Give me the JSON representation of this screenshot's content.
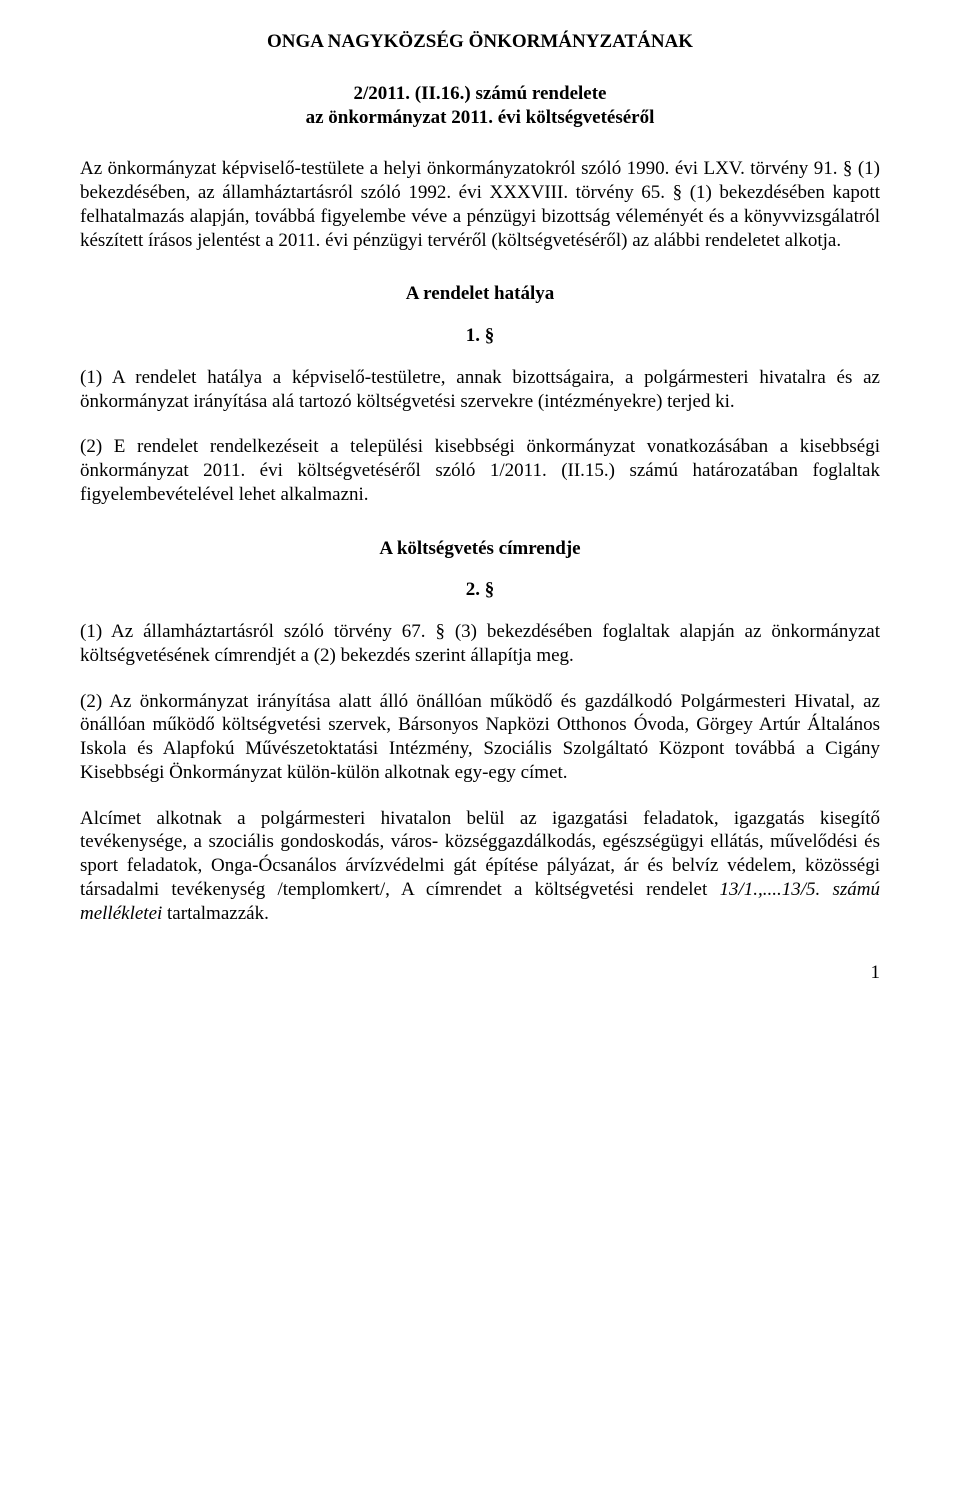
{
  "title": "ONGA NAGYKÖZSÉG ÖNKORMÁNYZATÁNAK",
  "subtitle_line1": "2/2011. (II.16.) számú rendelete",
  "subtitle_line2": "az önkormányzat 2011. évi költségvetéséről",
  "preamble": "Az önkormányzat képviselő-testülete a helyi önkormányzatokról szóló 1990. évi LXV. törvény 91. § (1) bekezdésében, az államháztartásról szóló 1992. évi XXXVIII. törvény 65. § (1) bekezdésében kapott felhatalmazás alapján, továbbá figyelembe véve  a pénzügyi bizottság véleményét és a könyvvizsgálatról készített írásos jelentést a  2011. évi pénzügyi tervéről (költségvetéséről) az alábbi rendeletet alkotja.",
  "section1": {
    "heading": "A rendelet hatálya",
    "num": "1. §",
    "p1": "(1) A rendelet hatálya a képviselő-testületre, annak bizottságaira, a polgármesteri hivatalra és az önkormányzat irányítása alá tartozó költségvetési szervekre (intézményekre) terjed ki.",
    "p2": "(2) E rendelet rendelkezéseit a települési kisebbségi önkormányzat vonatkozásában a kisebbségi önkormányzat 2011. évi költségvetéséről szóló 1/2011. (II.15.) számú határozatában foglaltak figyelembevételével lehet alkalmazni."
  },
  "section2": {
    "heading": "A költségvetés címrendje",
    "num": "2. §",
    "p1": "(1) Az államháztartásról szóló törvény 67. § (3) bekezdésében foglaltak alapján az önkormányzat költségvetésének címrendjét a (2) bekezdés szerint állapítja meg.",
    "p2": "(2) Az önkormányzat irányítása alatt álló önállóan működő és gazdálkodó Polgármesteri Hivatal, az önállóan működő költségvetési szervek, Bársonyos Napközi Otthonos Óvoda, Görgey Artúr Általános Iskola és Alapfokú Művészetoktatási Intézmény, Szociális Szolgáltató Központ továbbá a Cigány Kisebbségi Önkormányzat külön-külön alkotnak egy-egy címet.",
    "p3_a": "Alcímet alkotnak a polgármesteri hivatalon belül az igazgatási feladatok, igazgatás kisegítő tevékenysége, a szociális gondoskodás, város- községgazdálkodás, egészségügyi ellátás, művelődési és sport feladatok, Onga-Ócsanálos árvízvédelmi gát építése pályázat, ár és belvíz védelem, közösségi társadalmi tevékenység /templomkert/, A címrendet a költségvetési rendelet ",
    "p3_italic": "13/1.,....13/5.  számú mellékletei ",
    "p3_b": "tartalmazzák."
  },
  "pagenum": "1"
}
